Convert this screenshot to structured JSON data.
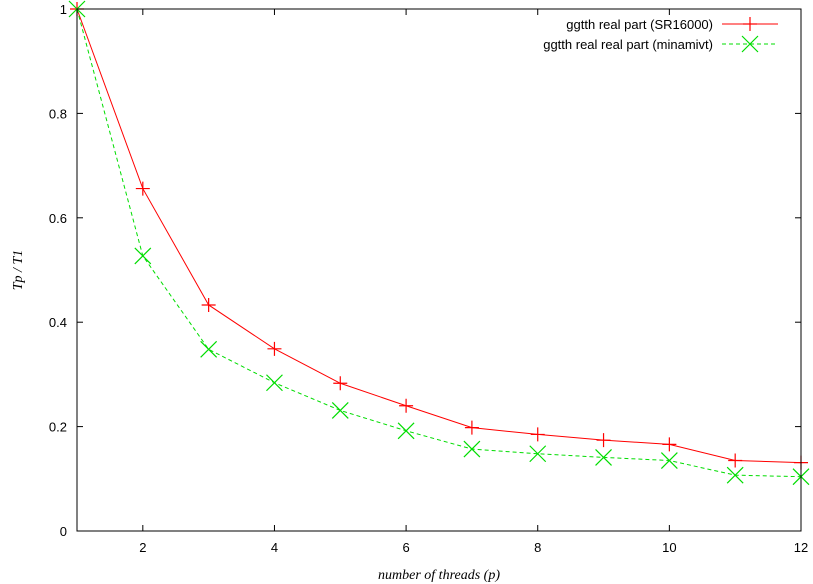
{
  "chart_data": {
    "type": "line",
    "title": "",
    "xlabel": "number of threads (p)",
    "ylabel": "Tp / T1",
    "xlim": [
      1,
      12
    ],
    "ylim": [
      0,
      1
    ],
    "xticks": [
      2,
      4,
      6,
      8,
      10,
      12
    ],
    "yticks": [
      0,
      0.2,
      0.4,
      0.6,
      0.8,
      1
    ],
    "ytick_labels": [
      "0",
      "0.2",
      "0.4",
      "0.6",
      "0.8",
      "1"
    ],
    "grid": false,
    "legend_position": "top-right",
    "x": [
      1,
      2,
      3,
      4,
      5,
      6,
      7,
      8,
      9,
      10,
      11,
      12
    ],
    "series": [
      {
        "name": "ggtth real part (SR16000)",
        "color": "#ff0000",
        "marker": "plus",
        "dash": "solid",
        "values": [
          1.0,
          0.656,
          0.433,
          0.349,
          0.283,
          0.24,
          0.198,
          0.185,
          0.174,
          0.166,
          0.135,
          0.131
        ]
      },
      {
        "name": "ggtth real real part (minamivt)",
        "color": "#00dd00",
        "marker": "cross",
        "dash": "dashed",
        "values": [
          1.0,
          0.527,
          0.348,
          0.284,
          0.231,
          0.192,
          0.157,
          0.148,
          0.141,
          0.135,
          0.107,
          0.104
        ]
      }
    ]
  }
}
